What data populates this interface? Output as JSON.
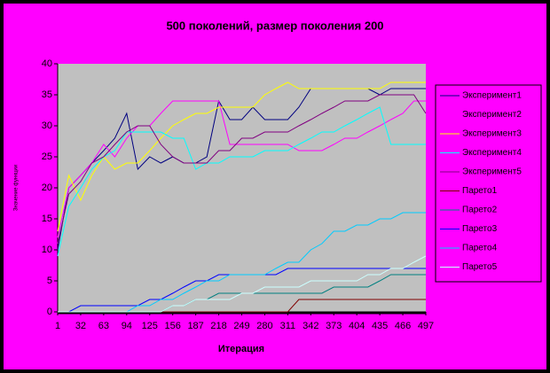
{
  "chart_data": {
    "type": "line",
    "title": "500 поколений, размер поколения 200",
    "x_label": "Итерация",
    "y_label": "Значение функции",
    "x": [
      1,
      16,
      32,
      47,
      63,
      78,
      94,
      109,
      125,
      140,
      156,
      171,
      187,
      202,
      218,
      233,
      249,
      264,
      280,
      295,
      311,
      326,
      342,
      357,
      373,
      388,
      404,
      419,
      435,
      450,
      466,
      481,
      497
    ],
    "xlim": [
      1,
      497
    ],
    "xticks": [
      1,
      32,
      63,
      94,
      125,
      156,
      187,
      218,
      249,
      280,
      311,
      342,
      373,
      404,
      435,
      466,
      497
    ],
    "ylim": [
      0,
      40
    ],
    "yticks": [
      0,
      5,
      10,
      15,
      20,
      25,
      30,
      35,
      40
    ],
    "series": [
      {
        "name": "Эксперимент1",
        "color": "#000080",
        "values": [
          10,
          20,
          22,
          24,
          26,
          28,
          32,
          23,
          25,
          24,
          25,
          24,
          24,
          25,
          34,
          31,
          31,
          33,
          31,
          31,
          31,
          33,
          36,
          36,
          36,
          36,
          36,
          36,
          35,
          36,
          36,
          36,
          36
        ]
      },
      {
        "name": "Эксперимент2",
        "color": "#ff00ff",
        "values": [
          12,
          20,
          22,
          24,
          27,
          25,
          28,
          30,
          30,
          32,
          34,
          34,
          34,
          34,
          34,
          27,
          27,
          27,
          27,
          27,
          27,
          26,
          26,
          26,
          27,
          28,
          28,
          29,
          30,
          31,
          32,
          34,
          34
        ]
      },
      {
        "name": "Эксперимент3",
        "color": "#ffff00",
        "values": [
          13,
          22,
          18,
          22,
          25,
          23,
          24,
          24,
          26,
          28,
          30,
          31,
          32,
          32,
          33,
          33,
          33,
          33,
          35,
          36,
          37,
          36,
          36,
          36,
          36,
          36,
          36,
          36,
          36,
          37,
          37,
          37,
          37
        ]
      },
      {
        "name": "Эксперимент4",
        "color": "#00ffff",
        "values": [
          9,
          17,
          20,
          23,
          25,
          26,
          29,
          29,
          29,
          29,
          28,
          28,
          23,
          24,
          24,
          25,
          25,
          25,
          26,
          26,
          26,
          27,
          28,
          29,
          29,
          30,
          31,
          32,
          33,
          27,
          27,
          27,
          27
        ]
      },
      {
        "name": "Эксперимент5",
        "color": "#800080",
        "values": [
          11,
          19,
          21,
          24,
          25,
          27,
          29,
          30,
          30,
          27,
          25,
          24,
          24,
          24,
          26,
          26,
          28,
          28,
          29,
          29,
          29,
          30,
          31,
          32,
          33,
          34,
          34,
          34,
          35,
          35,
          35,
          35,
          32
        ]
      },
      {
        "name": "Парето1",
        "color": "#800000",
        "values": [
          0,
          0,
          0,
          0,
          0,
          0,
          0,
          0,
          0,
          0,
          0,
          0,
          0,
          0,
          0,
          0,
          0,
          0,
          0,
          0,
          0,
          2,
          2,
          2,
          2,
          2,
          2,
          2,
          2,
          2,
          2,
          2,
          2
        ]
      },
      {
        "name": "Парето2",
        "color": "#008080",
        "values": [
          0,
          0,
          0,
          0,
          0,
          0,
          0,
          0,
          0,
          0,
          1,
          1,
          2,
          2,
          3,
          3,
          3,
          3,
          3,
          3,
          3,
          3,
          3,
          3,
          4,
          4,
          4,
          4,
          5,
          6,
          6,
          6,
          6
        ]
      },
      {
        "name": "Парето3",
        "color": "#0000ff",
        "values": [
          0,
          0,
          1,
          1,
          1,
          1,
          1,
          1,
          2,
          2,
          3,
          4,
          5,
          5,
          6,
          6,
          6,
          6,
          6,
          6,
          7,
          7,
          7,
          7,
          7,
          7,
          7,
          7,
          7,
          7,
          7,
          7,
          7
        ]
      },
      {
        "name": "Парето4",
        "color": "#00ccff",
        "values": [
          0,
          0,
          0,
          0,
          0,
          0,
          0,
          1,
          1,
          2,
          2,
          3,
          4,
          5,
          5,
          6,
          6,
          6,
          6,
          7,
          8,
          8,
          10,
          11,
          13,
          13,
          14,
          14,
          15,
          15,
          16,
          16,
          16
        ]
      },
      {
        "name": "Парето5",
        "color": "#ccffff",
        "values": [
          0,
          0,
          0,
          0,
          0,
          0,
          0,
          0,
          0,
          0,
          1,
          1,
          2,
          2,
          2,
          2,
          3,
          3,
          4,
          4,
          4,
          4,
          5,
          5,
          5,
          5,
          5,
          6,
          6,
          7,
          7,
          8,
          9
        ]
      }
    ]
  }
}
